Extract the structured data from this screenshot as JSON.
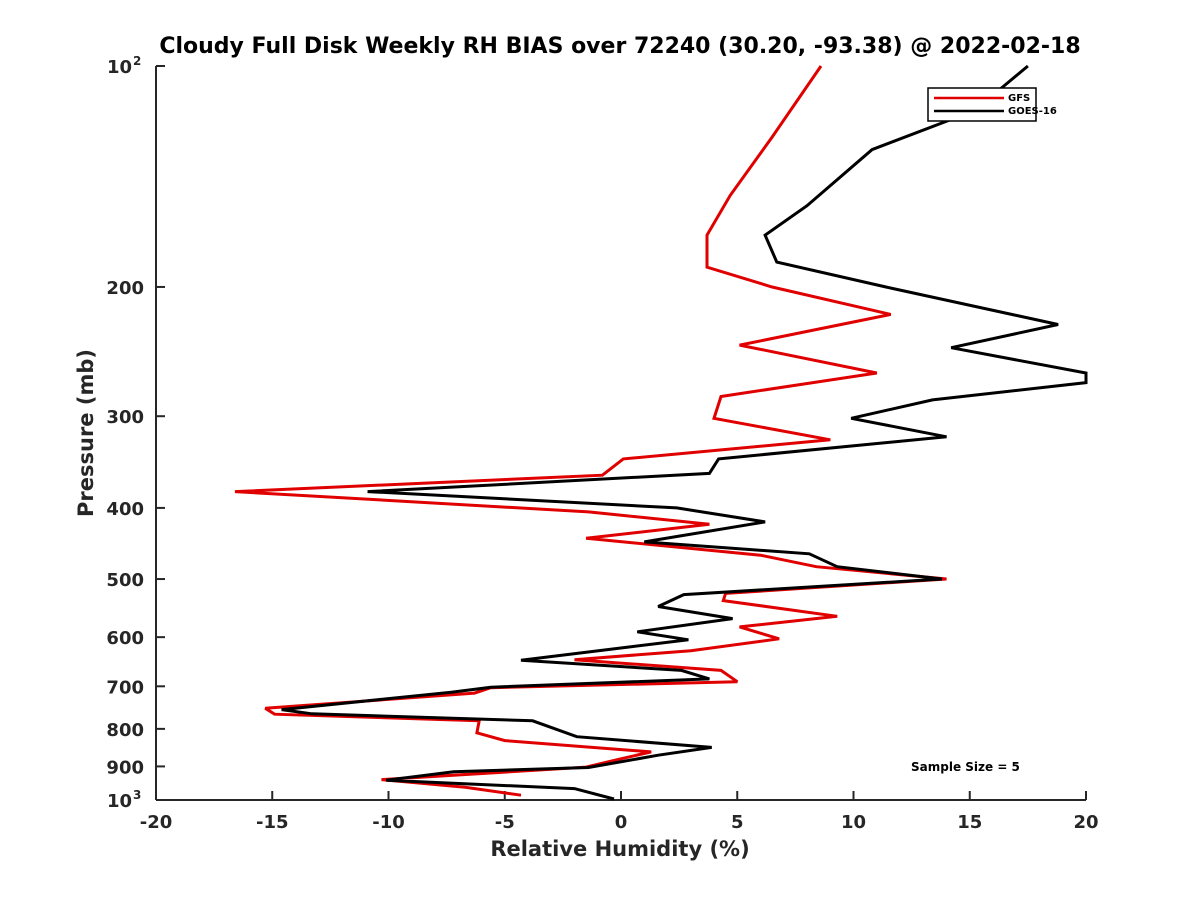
{
  "chart_data": {
    "type": "line",
    "title": "Cloudy Full Disk Weekly RH BIAS over 72240 (30.20, -93.38) @ 2022-02-18",
    "xlabel": "Relative Humidity (%)",
    "ylabel": "Pressure (mb)",
    "xlim": [
      -20,
      20
    ],
    "ylim": [
      100,
      1000
    ],
    "yscale": "log",
    "y_reversed": true,
    "grid": false,
    "legend_position": "top-right",
    "x_ticks": [
      -20,
      -15,
      -10,
      -5,
      0,
      5,
      10,
      15,
      20
    ],
    "x_tick_labels": [
      "-20",
      "-15",
      "-10",
      "-5",
      "0",
      "5",
      "10",
      "15",
      "20"
    ],
    "y_ticks": [
      100,
      200,
      300,
      400,
      500,
      600,
      700,
      800,
      900,
      1000
    ],
    "y_tick_labels": [
      {
        "base": "10",
        "exp": "2"
      },
      {
        "base": "200",
        "exp": ""
      },
      {
        "base": "300",
        "exp": ""
      },
      {
        "base": "400",
        "exp": ""
      },
      {
        "base": "500",
        "exp": ""
      },
      {
        "base": "600",
        "exp": ""
      },
      {
        "base": "700",
        "exp": ""
      },
      {
        "base": "800",
        "exp": ""
      },
      {
        "base": "900",
        "exp": ""
      },
      {
        "base": "10",
        "exp": "3"
      }
    ],
    "annotation": "Sample Size = 5",
    "series": [
      {
        "name": "GFS",
        "color": "#e00000",
        "points": [
          [
            8.6,
            100
          ],
          [
            6.5,
            125
          ],
          [
            4.7,
            150
          ],
          [
            3.7,
            170
          ],
          [
            3.7,
            188
          ],
          [
            6.5,
            200
          ],
          [
            11.6,
            218
          ],
          [
            5.1,
            240
          ],
          [
            11.0,
            262
          ],
          [
            4.3,
            282
          ],
          [
            4.0,
            302
          ],
          [
            9.0,
            323
          ],
          [
            0.1,
            343
          ],
          [
            -0.8,
            361
          ],
          [
            -16.6,
            380
          ],
          [
            -1.4,
            405
          ],
          [
            3.8,
            421
          ],
          [
            -1.5,
            440
          ],
          [
            6.0,
            464
          ],
          [
            8.4,
            481
          ],
          [
            14.0,
            500
          ],
          [
            4.5,
            523
          ],
          [
            4.4,
            535
          ],
          [
            9.3,
            562
          ],
          [
            5.1,
            581
          ],
          [
            6.8,
            603
          ],
          [
            3.0,
            626
          ],
          [
            -2.0,
            644
          ],
          [
            4.3,
            666
          ],
          [
            5.0,
            690
          ],
          [
            -5.6,
            703
          ],
          [
            -6.3,
            715
          ],
          [
            -15.3,
            750
          ],
          [
            -14.9,
            764
          ],
          [
            -6.1,
            780
          ],
          [
            -6.2,
            810
          ],
          [
            -5.0,
            830
          ],
          [
            1.3,
            860
          ],
          [
            -0.1,
            880
          ],
          [
            -1.5,
            902
          ],
          [
            -10.3,
            938
          ],
          [
            -6.7,
            961
          ],
          [
            -4.3,
            985
          ]
        ]
      },
      {
        "name": "GOES-16",
        "color": "#000000",
        "points": [
          [
            17.5,
            100
          ],
          [
            15.2,
            115
          ],
          [
            10.8,
            130
          ],
          [
            8.0,
            155
          ],
          [
            6.2,
            170
          ],
          [
            6.7,
            185
          ],
          [
            11.4,
            200
          ],
          [
            18.8,
            225
          ],
          [
            14.2,
            242
          ],
          [
            20.0,
            262
          ],
          [
            20.0,
            270
          ],
          [
            13.4,
            285
          ],
          [
            9.9,
            302
          ],
          [
            14.0,
            320
          ],
          [
            4.2,
            343
          ],
          [
            3.8,
            359
          ],
          [
            -10.9,
            380
          ],
          [
            2.4,
            400
          ],
          [
            6.2,
            418
          ],
          [
            1.0,
            445
          ],
          [
            8.1,
            462
          ],
          [
            9.3,
            481
          ],
          [
            13.8,
            500
          ],
          [
            2.7,
            525
          ],
          [
            1.6,
            545
          ],
          [
            4.8,
            566
          ],
          [
            0.7,
            590
          ],
          [
            2.9,
            605
          ],
          [
            0.3,
            619
          ],
          [
            -4.3,
            645
          ],
          [
            2.6,
            666
          ],
          [
            3.8,
            684
          ],
          [
            -5.6,
            702
          ],
          [
            -7.3,
            713
          ],
          [
            -14.6,
            753
          ],
          [
            -13.3,
            763
          ],
          [
            -3.8,
            780
          ],
          [
            -1.9,
            820
          ],
          [
            3.9,
            848
          ],
          [
            1.6,
            869
          ],
          [
            -1.4,
            903
          ],
          [
            -7.2,
            915
          ],
          [
            -10.1,
            940
          ],
          [
            -2.0,
            965
          ],
          [
            -0.3,
            997
          ]
        ]
      }
    ]
  }
}
